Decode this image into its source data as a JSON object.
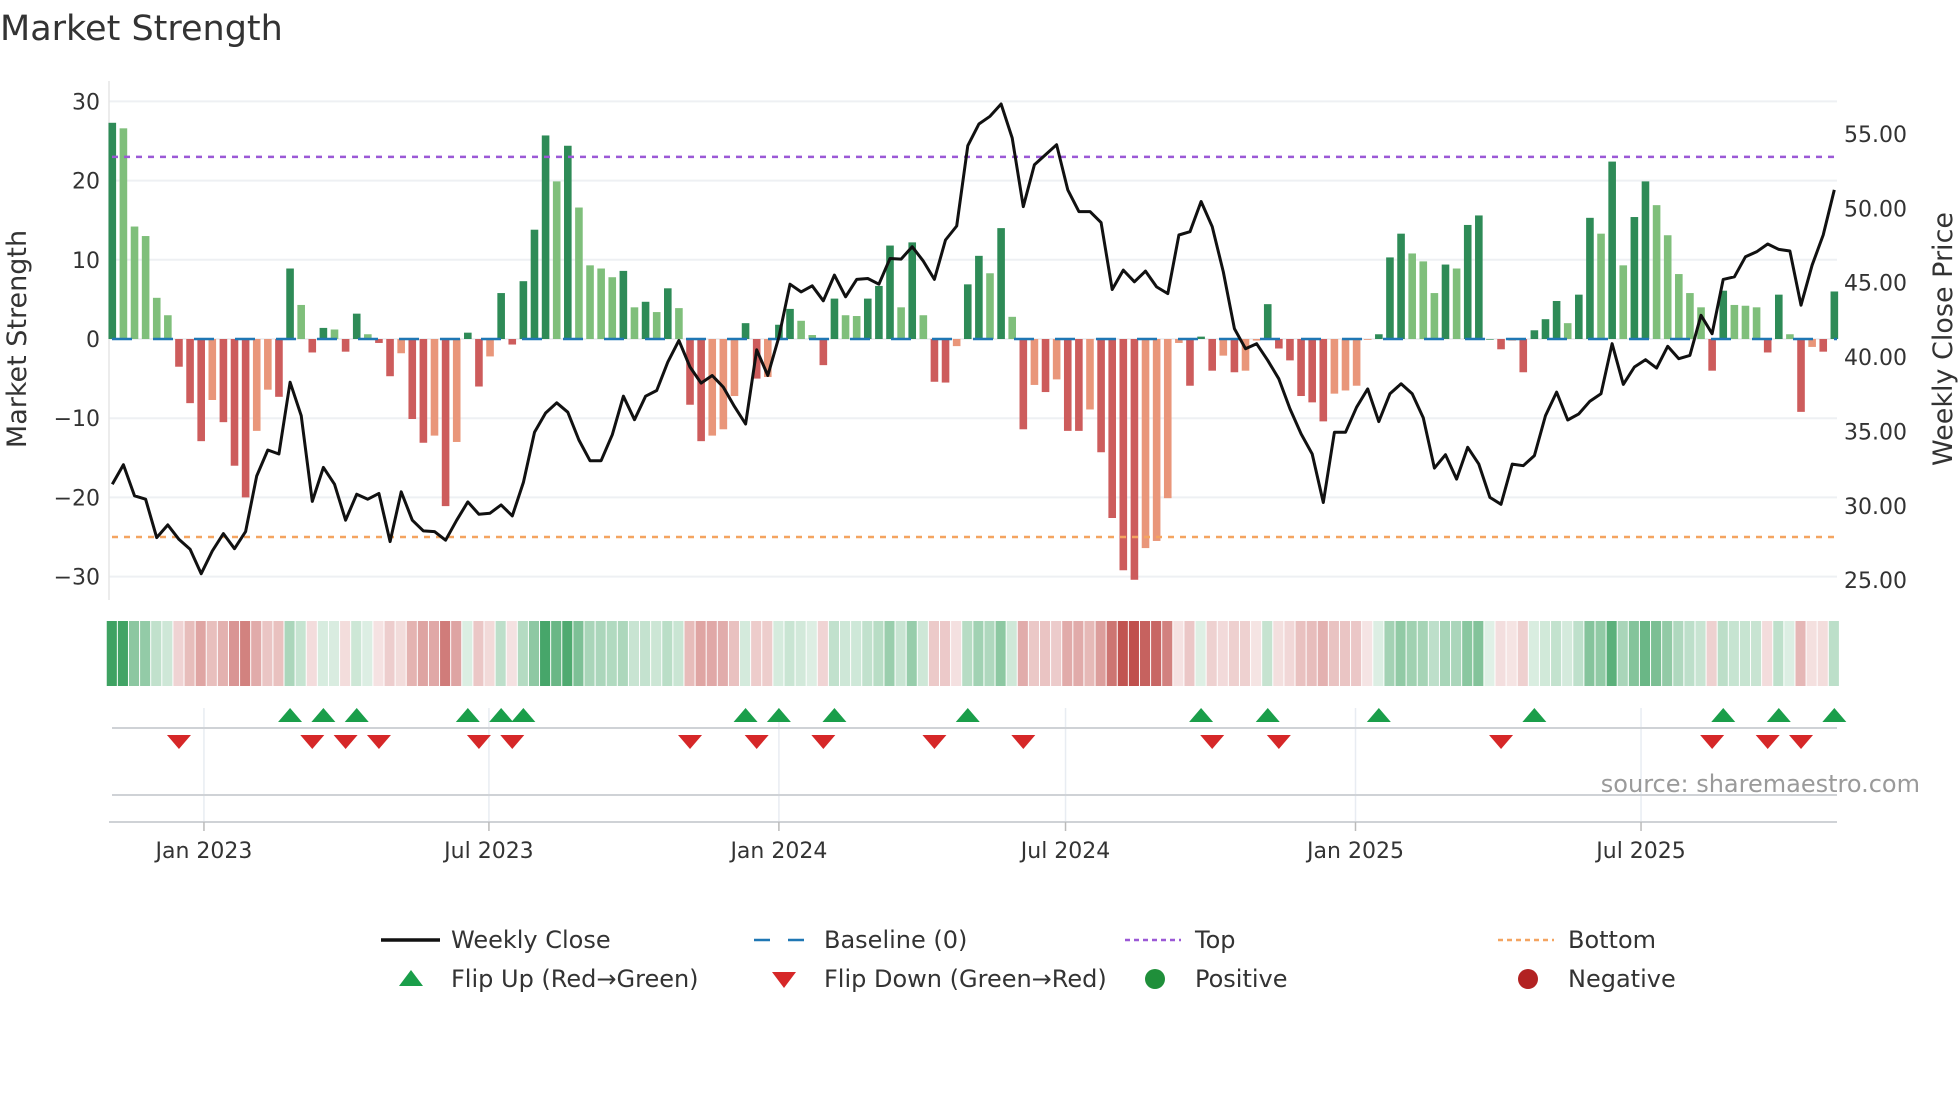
{
  "chart_data": {
    "type": "bar+line",
    "title": "Market Strength",
    "ylabel_left": "Market Strength",
    "ylabel_right": "Weekly Close Price",
    "x_interval": "weekly",
    "ylim_left": [
      -32,
      32
    ],
    "ylim_right": [
      23.6,
      58.6
    ],
    "left_ticks": [
      {
        "value": 30,
        "label": "30"
      },
      {
        "value": 20,
        "label": "20"
      },
      {
        "value": 10,
        "label": "10"
      },
      {
        "value": 0,
        "label": "0"
      },
      {
        "value": -10,
        "label": "−10"
      },
      {
        "value": -20,
        "label": "−20"
      },
      {
        "value": -30,
        "label": "−30"
      }
    ],
    "right_ticks": [
      {
        "value": 55,
        "label": "55.00"
      },
      {
        "value": 50,
        "label": "50.00"
      },
      {
        "value": 45,
        "label": "45.00"
      },
      {
        "value": 40,
        "label": "40.00"
      },
      {
        "value": 35,
        "label": "35.00"
      },
      {
        "value": 30,
        "label": "30.00"
      },
      {
        "value": 25,
        "label": "25.00"
      }
    ],
    "x_ticks": [
      {
        "week_index": 8.25,
        "label": "Jan 2023"
      },
      {
        "week_index": 33.9,
        "label": "Jul 2023"
      },
      {
        "week_index": 60.0,
        "label": "Jan 2024"
      },
      {
        "week_index": 85.8,
        "label": "Jul 2024"
      },
      {
        "week_index": 111.9,
        "label": "Jan 2025"
      },
      {
        "week_index": 137.6,
        "label": "Jul 2025"
      }
    ],
    "thresholds": {
      "top": 23,
      "bottom": -25,
      "baseline": 0
    },
    "strength": [
      27.3,
      26.6,
      14.2,
      13.0,
      5.2,
      3.0,
      -3.5,
      -8.1,
      -12.9,
      -7.7,
      -10.5,
      -16.0,
      -20.0,
      -11.6,
      -6.4,
      -7.3,
      8.9,
      4.3,
      -1.7,
      1.4,
      1.2,
      -1.6,
      3.2,
      0.6,
      -0.5,
      -4.7,
      -1.8,
      -10.1,
      -13.1,
      -12.2,
      -21.1,
      -13.0,
      0.8,
      -6.0,
      -2.2,
      5.8,
      -0.7,
      7.3,
      13.8,
      25.7,
      19.9,
      24.4,
      16.6,
      9.3,
      8.9,
      7.8,
      8.6,
      4.0,
      4.7,
      3.4,
      6.4,
      3.9,
      -8.3,
      -12.9,
      -12.2,
      -11.4,
      -7.2,
      2.0,
      -5.0,
      -4.8,
      1.8,
      3.8,
      2.3,
      0.5,
      -3.3,
      5.1,
      3.0,
      2.9,
      5.1,
      6.7,
      11.8,
      4.0,
      12.2,
      3.0,
      -5.4,
      -5.5,
      -0.9,
      6.9,
      10.5,
      8.3,
      14.0,
      2.8,
      -11.4,
      -5.8,
      -6.7,
      -5.1,
      -11.6,
      -11.6,
      -8.9,
      -14.3,
      -22.6,
      -29.2,
      -30.4,
      -26.4,
      -25.5,
      -20.1,
      -0.5,
      -5.9,
      0.3,
      -4.0,
      -2.1,
      -4.2,
      -4.0,
      -0.2,
      4.4,
      -1.2,
      -2.7,
      -7.2,
      -8.0,
      -10.4,
      -6.9,
      -6.5,
      -5.9,
      -0.1,
      0.6,
      10.3,
      13.3,
      10.8,
      9.8,
      5.8,
      9.4,
      8.9,
      14.4,
      15.6,
      0.0,
      -1.3,
      -0.2,
      -4.2,
      1.1,
      2.5,
      4.8,
      2.0,
      5.6,
      15.3,
      13.3,
      22.4,
      9.3,
      15.4,
      19.9,
      16.9,
      13.1,
      8.2,
      5.8,
      4.0,
      -4.0,
      6.1,
      4.3,
      4.2,
      4.0,
      -1.7,
      5.6,
      0.6,
      -9.2,
      -1.0,
      -1.6,
      6.0
    ],
    "weekly_close": [
      31.45,
      32.76,
      30.67,
      30.44,
      27.86,
      28.71,
      27.74,
      27.07,
      25.43,
      26.96,
      28.13,
      27.11,
      28.26,
      32.0,
      33.75,
      33.48,
      38.31,
      36.06,
      30.29,
      32.58,
      31.45,
      29.03,
      30.78,
      30.44,
      30.83,
      27.59,
      30.94,
      29.03,
      28.31,
      28.26,
      27.68,
      29.03,
      30.26,
      29.43,
      29.5,
      30.06,
      29.32,
      31.57,
      34.94,
      36.24,
      36.92,
      36.29,
      34.42,
      33.03,
      33.03,
      34.78,
      37.37,
      35.79,
      37.37,
      37.75,
      39.66,
      41.12,
      39.33,
      38.25,
      38.76,
      37.98,
      36.67,
      35.5,
      40.49,
      38.76,
      41.35,
      44.9,
      44.38,
      44.79,
      43.78,
      45.51,
      44.05,
      45.22,
      45.28,
      44.9,
      46.63,
      46.59,
      47.42,
      46.45,
      45.22,
      47.87,
      48.81,
      54.21,
      55.67,
      56.19,
      57.02,
      54.73,
      50.12,
      52.93,
      53.6,
      54.28,
      51.24,
      49.78,
      49.78,
      49.04,
      44.54,
      45.85,
      45.06,
      45.78,
      44.72,
      44.27,
      48.21,
      48.43,
      50.46,
      48.77,
      45.73,
      41.91,
      40.56,
      40.9,
      39.78,
      38.54,
      36.51,
      34.83,
      33.48,
      30.22,
      34.94,
      34.94,
      36.63,
      37.86,
      35.66,
      37.53,
      38.2,
      37.53,
      35.91,
      32.53,
      33.43,
      31.79,
      33.93,
      32.8,
      30.56,
      30.1,
      32.8,
      32.69,
      33.37,
      36.06,
      37.64,
      35.77,
      36.18,
      37.03,
      37.53,
      40.9,
      38.16,
      39.33,
      39.82,
      39.26,
      40.72,
      39.89,
      40.11,
      42.81,
      41.57,
      45.22,
      45.4,
      46.75,
      47.08,
      47.6,
      47.24,
      47.13,
      43.49,
      46.18,
      48.21,
      51.24
    ],
    "flip_up_weeks": [
      16,
      19,
      22,
      32,
      35,
      37,
      57,
      60,
      65,
      77,
      98,
      104,
      114,
      128,
      145,
      150,
      155
    ],
    "flip_down_weeks": [
      6,
      18,
      21,
      24,
      33,
      36,
      52,
      58,
      64,
      74,
      82,
      99,
      105,
      125,
      144,
      149,
      152
    ],
    "legend": [
      {
        "key": "close",
        "label": "Weekly Close"
      },
      {
        "key": "baseline",
        "label": "Baseline (0)"
      },
      {
        "key": "top",
        "label": "Top"
      },
      {
        "key": "bottom",
        "label": "Bottom"
      },
      {
        "key": "flip_up",
        "label": "Flip Up (Red→Green)"
      },
      {
        "key": "flip_down",
        "label": "Flip Down (Green→Red)"
      },
      {
        "key": "positive",
        "label": "Positive"
      },
      {
        "key": "negative",
        "label": "Negative"
      }
    ],
    "legend_placement": "bottom",
    "source": "source: sharemaestro.com"
  },
  "colors": {
    "pos_strong": "#2e8b57",
    "pos_weak": "#7fbf7b",
    "neg_strong": "#cd5c5c",
    "neg_weak": "#e9967a",
    "close": "#111111",
    "baseline": "#1f77b4",
    "top": "#9b59d6",
    "bottom": "#f4a460",
    "flip_up": "#1a9e4a",
    "flip_down": "#d62728",
    "positive": "#1f8f3a",
    "negative": "#b22222"
  }
}
